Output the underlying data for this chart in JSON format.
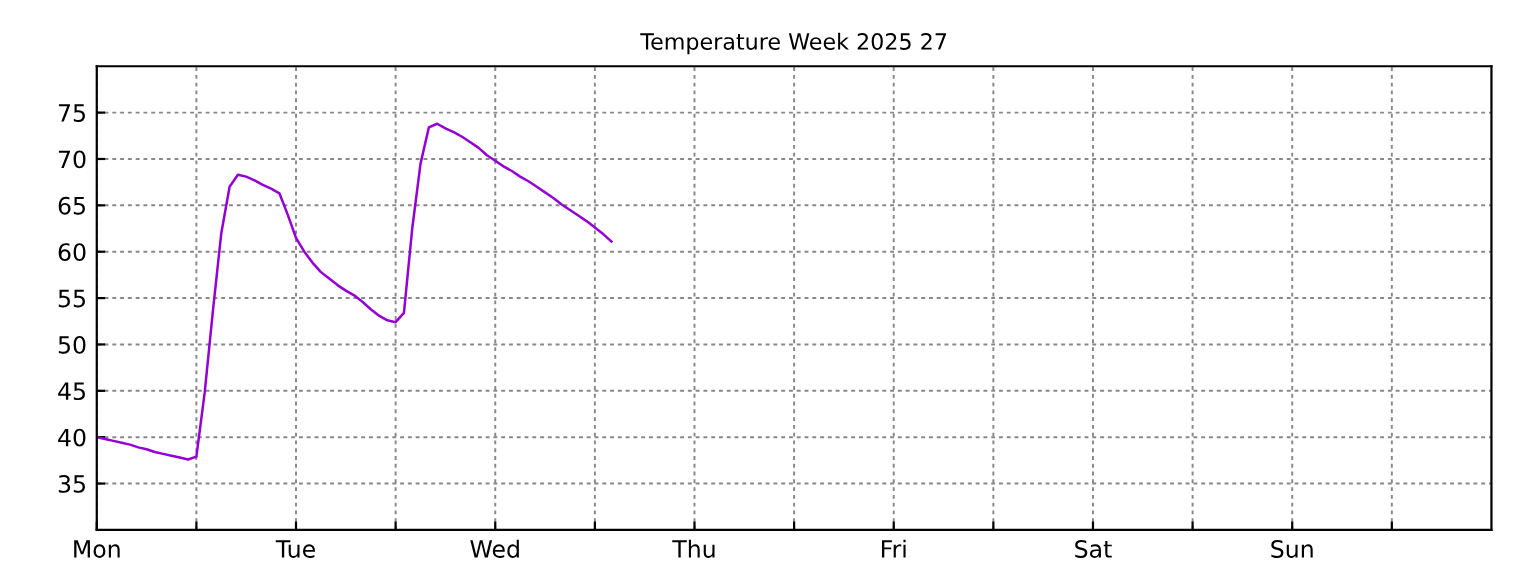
{
  "chart_data": {
    "type": "line",
    "title": "Temperature Week 2025 27",
    "categories": [
      "Mon",
      null,
      null,
      null,
      null,
      null,
      null,
      null,
      null,
      null,
      null,
      null,
      null,
      null,
      null,
      null,
      null,
      null,
      null,
      null,
      null,
      null,
      null,
      null,
      "Tue",
      null,
      null,
      null,
      null,
      null,
      null,
      null,
      null,
      null,
      null,
      null,
      null,
      null,
      null,
      null,
      null,
      null,
      null,
      null,
      null,
      null,
      null,
      null,
      "Wed",
      null,
      null,
      null,
      null,
      null,
      null,
      null,
      null,
      null,
      null,
      null,
      null,
      null,
      null,
      null,
      null,
      null,
      null,
      null,
      null,
      null,
      null,
      null,
      "Thu",
      null,
      null,
      null,
      null,
      null,
      null,
      null,
      null,
      null,
      null,
      null,
      null,
      null,
      null,
      null,
      null,
      null,
      null,
      null,
      null,
      null,
      null,
      null,
      "Fri",
      null,
      null,
      null,
      null,
      null,
      null,
      null,
      null,
      null,
      null,
      null,
      null,
      null,
      null,
      null,
      null,
      null,
      null,
      null,
      null,
      null,
      null,
      null,
      "Sat",
      null,
      null,
      null,
      null,
      null,
      null,
      null,
      null,
      null,
      null,
      null,
      null,
      null,
      null,
      null,
      null,
      null,
      null,
      null,
      null,
      null,
      null,
      null,
      "Sun",
      null,
      null,
      null,
      null,
      null,
      null,
      null,
      null,
      null,
      null,
      null,
      null,
      null,
      null,
      null,
      null,
      null,
      null,
      null,
      null,
      null,
      null,
      null
    ],
    "series": [
      {
        "color": "#9400d3",
        "values": [
          40.0,
          39.8,
          39.6,
          39.4,
          39.2,
          38.9,
          38.7,
          38.4,
          38.2,
          38.0,
          37.8,
          37.6,
          37.9,
          44.8,
          53.7,
          62.0,
          67.0,
          68.3,
          68.1,
          67.7,
          67.2,
          66.8,
          66.3,
          64.0,
          61.5,
          60.0,
          58.8,
          57.8,
          57.1,
          56.4,
          55.8,
          55.3,
          54.6,
          53.8,
          53.1,
          52.6,
          52.4,
          53.4,
          62.5,
          69.5,
          73.4,
          73.8,
          73.3,
          72.9,
          72.4,
          71.8,
          71.2,
          70.4,
          69.8,
          69.2,
          68.7,
          68.1,
          67.6,
          67.0,
          66.4,
          65.8,
          65.1,
          64.5,
          63.9,
          63.3,
          62.6,
          61.9,
          61.1,
          null,
          null,
          null,
          null,
          null,
          null,
          null,
          null,
          null,
          null,
          null,
          null,
          null,
          null,
          null,
          null,
          null,
          null,
          null,
          null,
          null,
          null,
          null,
          null,
          null,
          null,
          null,
          null,
          null,
          null,
          null,
          null,
          null,
          null,
          null,
          null,
          null,
          null,
          null,
          null,
          null,
          null,
          null,
          null,
          null,
          null,
          null,
          null,
          null,
          null,
          null,
          null,
          null,
          null,
          null,
          null,
          null,
          null,
          null,
          null,
          null,
          null,
          null,
          null,
          null,
          null,
          null,
          null,
          null,
          null,
          null,
          null,
          null,
          null,
          null,
          null,
          null,
          null,
          null,
          null,
          null,
          null,
          null,
          null,
          null,
          null,
          null,
          null,
          null,
          null,
          null,
          null,
          null,
          null,
          null,
          null,
          null,
          null,
          null,
          null,
          null,
          null,
          null,
          null,
          null
        ]
      }
    ],
    "ylim": [
      30,
      80
    ],
    "yticks": [
      35,
      40,
      45,
      50,
      55,
      60,
      65,
      70,
      75
    ],
    "grid": true,
    "line_style": "solid",
    "marker": "none"
  }
}
